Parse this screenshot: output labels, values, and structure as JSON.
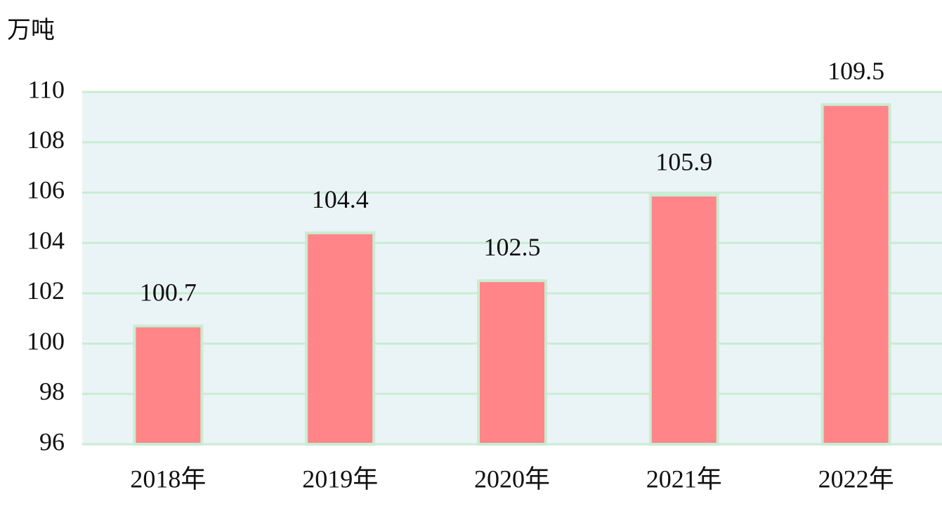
{
  "chart_data": {
    "type": "bar",
    "y_axis_label": "万吨",
    "categories": [
      "2018年",
      "2019年",
      "2020年",
      "2021年",
      "2022年"
    ],
    "values": [
      100.7,
      104.4,
      102.5,
      105.9,
      109.5
    ],
    "color": "#ff8589",
    "border_color": "#c9ecd3",
    "background": "#eaf4f6",
    "ylim": [
      96,
      110
    ],
    "yticks": [
      96,
      98,
      100,
      102,
      104,
      106,
      108,
      110
    ],
    "grid": true,
    "grid_color": "#c9ecd3"
  }
}
